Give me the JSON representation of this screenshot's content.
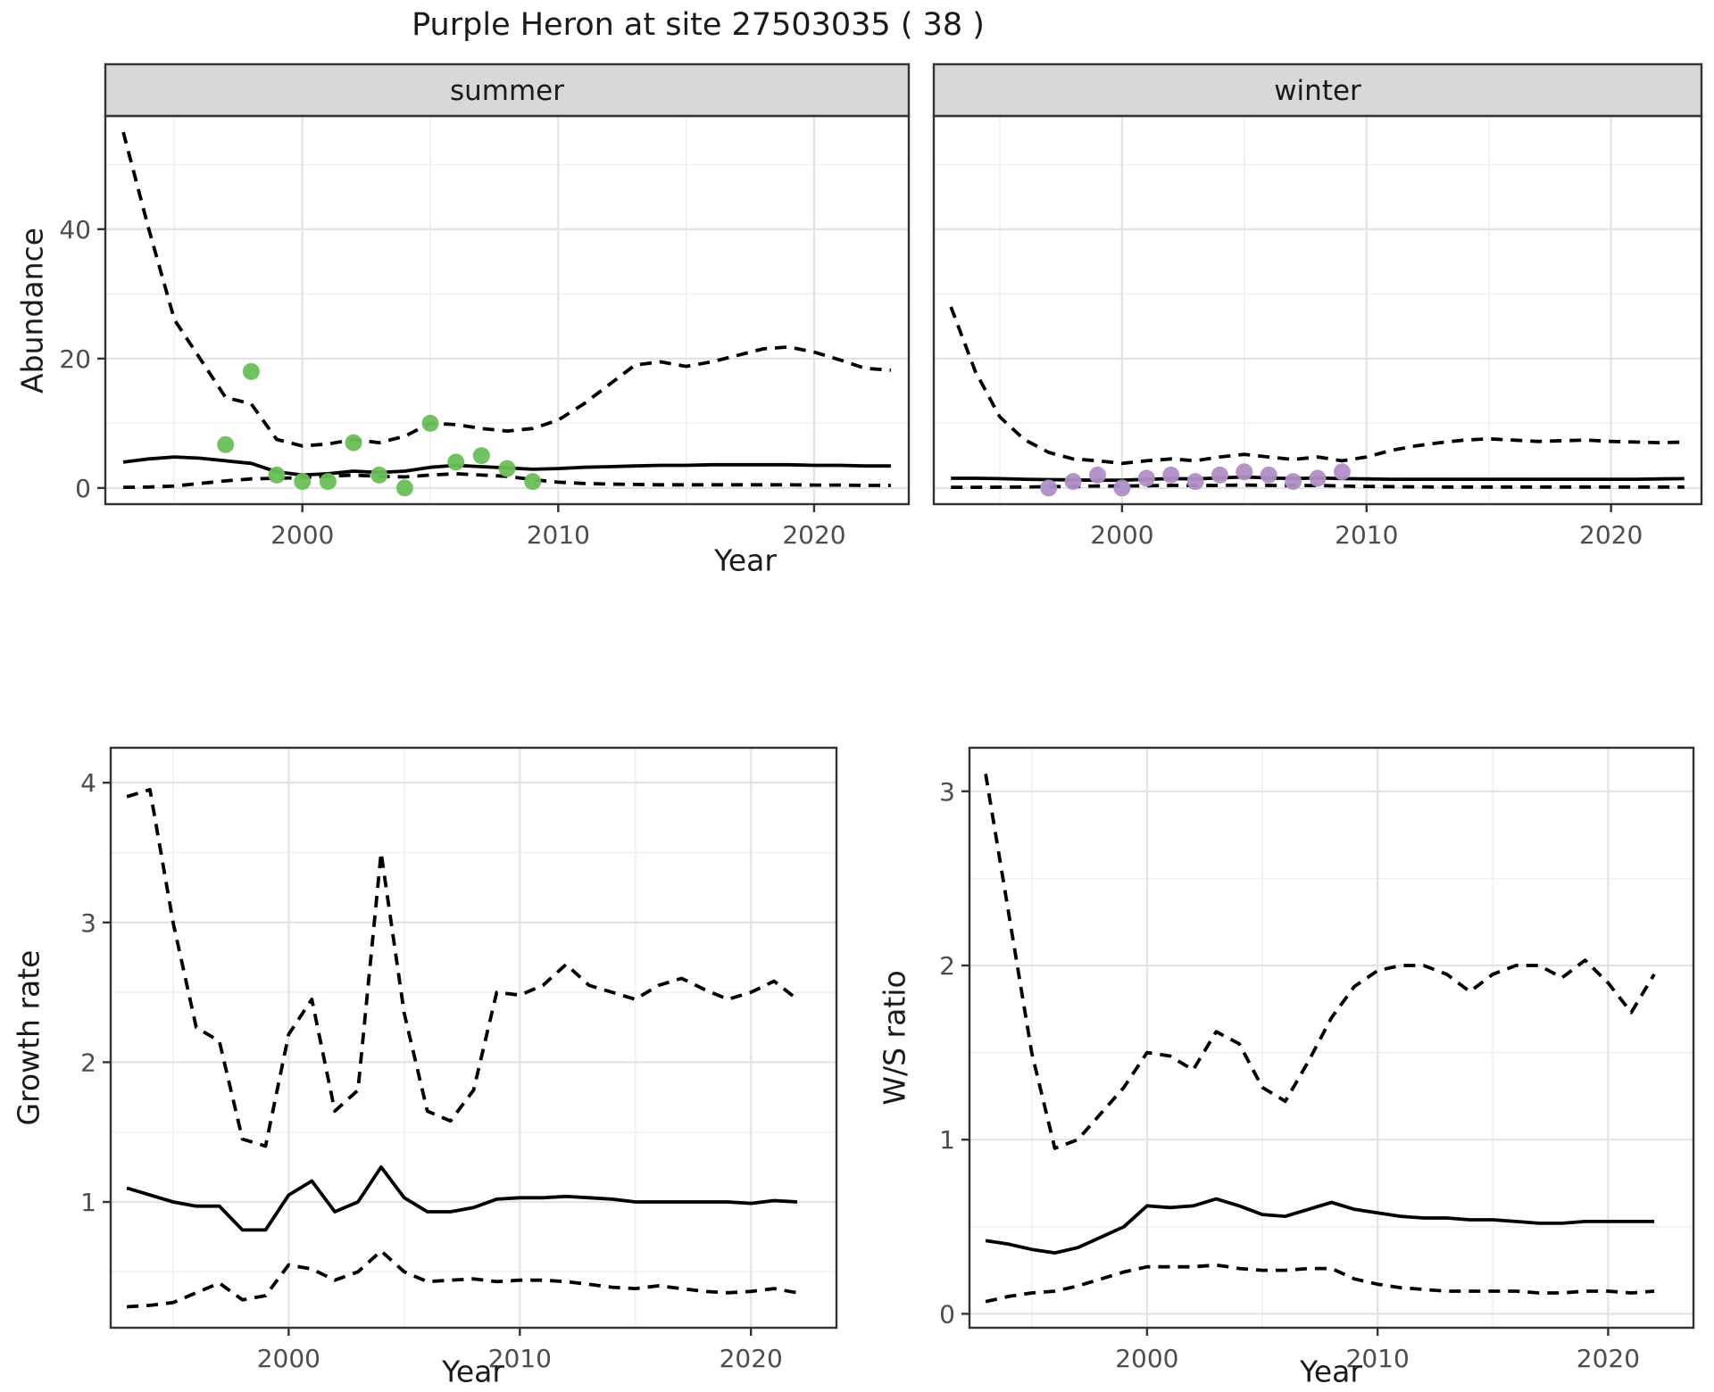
{
  "title": "Purple Heron at site 27503035 ( 38 )",
  "axis_labels": {
    "y_top": "Abundance",
    "y_growth": "Growth rate",
    "y_ws": "W/S ratio",
    "x": "Year"
  },
  "colors": {
    "summer_point": "#6abf59",
    "winter_point": "#b18fc6",
    "line": "#000000",
    "strip_bg": "#d8d8d8",
    "panel_border": "#333333",
    "grid_major": "#e3e3e3",
    "grid_minor": "#f0f0f0",
    "tick_text": "#4d4d4d",
    "text": "#1a1a1a"
  },
  "chart_data": [
    {
      "type": "line",
      "facet_label": "summer",
      "xlabel": "Year",
      "ylabel": "Abundance",
      "xlim": [
        1992.3,
        2023.7
      ],
      "ylim": [
        -2.5,
        57.5
      ],
      "xticks": [
        2000,
        2010,
        2020
      ],
      "xticks_minor": [
        1995,
        2005,
        2015
      ],
      "yticks": [
        0,
        20,
        40
      ],
      "yticks_minor": [
        10,
        30,
        50
      ],
      "grid": true,
      "legend": "none",
      "x": [
        1993,
        1994,
        1995,
        1996,
        1997,
        1998,
        1999,
        2000,
        2001,
        2002,
        2003,
        2004,
        2005,
        2006,
        2007,
        2008,
        2009,
        2010,
        2011,
        2012,
        2013,
        2014,
        2015,
        2016,
        2017,
        2018,
        2019,
        2020,
        2021,
        2022,
        2023
      ],
      "series": [
        {
          "name": "upper_ci",
          "style": "dashed",
          "values": [
            55,
            40,
            26,
            20,
            14,
            13,
            7.5,
            6.5,
            6.8,
            7.5,
            7,
            8,
            10,
            9.8,
            9.2,
            8.8,
            9.2,
            10.5,
            13,
            16,
            19,
            19.5,
            18.8,
            19.5,
            20.5,
            21.5,
            21.8,
            21,
            19.8,
            18.5,
            18.2
          ]
        },
        {
          "name": "median",
          "style": "solid",
          "values": [
            4,
            4.5,
            4.8,
            4.6,
            4.2,
            3.8,
            2.5,
            2,
            2.2,
            2.6,
            2.4,
            2.6,
            3.2,
            3.5,
            3.3,
            3.1,
            2.9,
            3,
            3.2,
            3.3,
            3.4,
            3.5,
            3.5,
            3.6,
            3.6,
            3.6,
            3.6,
            3.5,
            3.5,
            3.4,
            3.4
          ]
        },
        {
          "name": "lower_ci",
          "style": "dashed",
          "values": [
            0.1,
            0.15,
            0.3,
            0.7,
            1.1,
            1.4,
            1.5,
            1.6,
            1.8,
            2,
            1.8,
            1.7,
            2,
            2.2,
            2,
            1.8,
            1.3,
            0.9,
            0.7,
            0.6,
            0.55,
            0.5,
            0.5,
            0.5,
            0.5,
            0.5,
            0.5,
            0.45,
            0.45,
            0.4,
            0.4
          ]
        }
      ],
      "points": {
        "name": "observed-summer-counts",
        "color": "#6abf59",
        "data": [
          [
            1997,
            6.7
          ],
          [
            1998,
            18
          ],
          [
            1999,
            2
          ],
          [
            2000,
            1
          ],
          [
            2001,
            1
          ],
          [
            2002,
            7
          ],
          [
            2003,
            2
          ],
          [
            2004,
            0
          ],
          [
            2005,
            10
          ],
          [
            2006,
            4
          ],
          [
            2007,
            5
          ],
          [
            2008,
            3
          ],
          [
            2009,
            1
          ]
        ]
      }
    },
    {
      "type": "line",
      "facet_label": "winter",
      "xlabel": "Year",
      "ylabel": "Abundance",
      "xlim": [
        1992.3,
        2023.7
      ],
      "ylim": [
        -2.5,
        57.5
      ],
      "xticks": [
        2000,
        2010,
        2020
      ],
      "xticks_minor": [
        1995,
        2005,
        2015
      ],
      "yticks": [
        0,
        20,
        40
      ],
      "yticks_minor": [
        10,
        30,
        50
      ],
      "grid": true,
      "legend": "none",
      "x": [
        1993,
        1994,
        1995,
        1996,
        1997,
        1998,
        1999,
        2000,
        2001,
        2002,
        2003,
        2004,
        2005,
        2006,
        2007,
        2008,
        2009,
        2010,
        2011,
        2012,
        2013,
        2014,
        2015,
        2016,
        2017,
        2018,
        2019,
        2020,
        2021,
        2022,
        2023
      ],
      "series": [
        {
          "name": "upper_ci",
          "style": "dashed",
          "values": [
            28,
            18,
            11,
            7.5,
            5.5,
            4.5,
            4.2,
            3.8,
            4.2,
            4.5,
            4.2,
            4.8,
            5.2,
            4.8,
            4.4,
            4.8,
            4.2,
            4.8,
            5.8,
            6.5,
            7,
            7.4,
            7.6,
            7.4,
            7.2,
            7.3,
            7.4,
            7.2,
            7.1,
            7,
            7.1
          ]
        },
        {
          "name": "median",
          "style": "solid",
          "values": [
            1.5,
            1.5,
            1.45,
            1.35,
            1.3,
            1.25,
            1.2,
            1.2,
            1.35,
            1.45,
            1.4,
            1.55,
            1.7,
            1.55,
            1.45,
            1.55,
            1.45,
            1.4,
            1.35,
            1.35,
            1.35,
            1.35,
            1.35,
            1.35,
            1.35,
            1.35,
            1.35,
            1.35,
            1.35,
            1.4,
            1.45
          ]
        },
        {
          "name": "lower_ci",
          "style": "dashed",
          "values": [
            0.1,
            0.1,
            0.12,
            0.15,
            0.2,
            0.25,
            0.3,
            0.3,
            0.35,
            0.4,
            0.38,
            0.4,
            0.45,
            0.4,
            0.35,
            0.4,
            0.3,
            0.25,
            0.2,
            0.18,
            0.15,
            0.15,
            0.15,
            0.15,
            0.15,
            0.15,
            0.15,
            0.15,
            0.15,
            0.15,
            0.15
          ]
        }
      ],
      "points": {
        "name": "observed-winter-counts",
        "color": "#b18fc6",
        "data": [
          [
            1997,
            0
          ],
          [
            1998,
            1
          ],
          [
            1999,
            2
          ],
          [
            2000,
            0
          ],
          [
            2001,
            1.5
          ],
          [
            2002,
            2
          ],
          [
            2003,
            1
          ],
          [
            2004,
            2
          ],
          [
            2005,
            2.5
          ],
          [
            2006,
            2
          ],
          [
            2007,
            1
          ],
          [
            2008,
            1.5
          ],
          [
            2009,
            2.5
          ]
        ]
      }
    },
    {
      "type": "line",
      "facet_label": "",
      "xlabel": "Year",
      "ylabel": "Growth rate",
      "xlim": [
        1992.3,
        2023.7
      ],
      "ylim": [
        0.1,
        4.25
      ],
      "xticks": [
        2000,
        2010,
        2020
      ],
      "xticks_minor": [
        1995,
        2005,
        2015
      ],
      "yticks": [
        1,
        2,
        3,
        4
      ],
      "yticks_minor": [
        0.5,
        1.5,
        2.5,
        3.5
      ],
      "grid": true,
      "legend": "none",
      "x": [
        1993,
        1994,
        1995,
        1996,
        1997,
        1998,
        1999,
        2000,
        2001,
        2002,
        2003,
        2004,
        2005,
        2006,
        2007,
        2008,
        2009,
        2010,
        2011,
        2012,
        2013,
        2014,
        2015,
        2016,
        2017,
        2018,
        2019,
        2020,
        2021,
        2022
      ],
      "series": [
        {
          "name": "upper_ci",
          "style": "dashed",
          "values": [
            3.9,
            3.95,
            3,
            2.25,
            2.15,
            1.45,
            1.4,
            2.2,
            2.45,
            1.65,
            1.8,
            3.5,
            2.35,
            1.65,
            1.58,
            1.8,
            2.5,
            2.48,
            2.55,
            2.7,
            2.55,
            2.5,
            2.45,
            2.55,
            2.6,
            2.52,
            2.45,
            2.5,
            2.58,
            2.45
          ]
        },
        {
          "name": "median",
          "style": "solid",
          "values": [
            1.1,
            1.05,
            1,
            0.97,
            0.97,
            0.8,
            0.8,
            1.05,
            1.15,
            0.93,
            1,
            1.25,
            1.03,
            0.93,
            0.93,
            0.96,
            1.02,
            1.03,
            1.03,
            1.04,
            1.03,
            1.02,
            1,
            1,
            1,
            1,
            1,
            0.99,
            1.01,
            1
          ]
        },
        {
          "name": "lower_ci",
          "style": "dashed",
          "values": [
            0.25,
            0.26,
            0.28,
            0.35,
            0.42,
            0.3,
            0.33,
            0.55,
            0.52,
            0.44,
            0.5,
            0.65,
            0.5,
            0.43,
            0.44,
            0.45,
            0.43,
            0.44,
            0.44,
            0.43,
            0.41,
            0.39,
            0.38,
            0.4,
            0.38,
            0.36,
            0.35,
            0.36,
            0.38,
            0.35
          ]
        }
      ],
      "points": null
    },
    {
      "type": "line",
      "facet_label": "",
      "xlabel": "Year",
      "ylabel": "W/S ratio",
      "xlim": [
        1992.3,
        2023.7
      ],
      "ylim": [
        -0.08,
        3.25
      ],
      "xticks": [
        2000,
        2010,
        2020
      ],
      "xticks_minor": [
        1995,
        2005,
        2015
      ],
      "yticks": [
        0,
        1,
        2,
        3
      ],
      "yticks_minor": [
        0.5,
        1.5,
        2.5
      ],
      "grid": true,
      "legend": "none",
      "x": [
        1993,
        1994,
        1995,
        1996,
        1997,
        1998,
        1999,
        2000,
        2001,
        2002,
        2003,
        2004,
        2005,
        2006,
        2007,
        2008,
        2009,
        2010,
        2011,
        2012,
        2013,
        2014,
        2015,
        2016,
        2017,
        2018,
        2019,
        2020,
        2021,
        2022
      ],
      "series": [
        {
          "name": "upper_ci",
          "style": "dashed",
          "values": [
            3.1,
            2.3,
            1.5,
            0.95,
            1,
            1.15,
            1.3,
            1.5,
            1.48,
            1.4,
            1.62,
            1.55,
            1.3,
            1.22,
            1.45,
            1.7,
            1.88,
            1.97,
            2,
            2,
            1.95,
            1.85,
            1.95,
            2,
            2,
            1.93,
            2.03,
            1.9,
            1.73,
            1.95
          ]
        },
        {
          "name": "median",
          "style": "solid",
          "values": [
            0.42,
            0.4,
            0.37,
            0.35,
            0.38,
            0.44,
            0.5,
            0.62,
            0.61,
            0.62,
            0.66,
            0.62,
            0.57,
            0.56,
            0.6,
            0.64,
            0.6,
            0.58,
            0.56,
            0.55,
            0.55,
            0.54,
            0.54,
            0.53,
            0.52,
            0.52,
            0.53,
            0.53,
            0.53,
            0.53
          ]
        },
        {
          "name": "lower_ci",
          "style": "dashed",
          "values": [
            0.07,
            0.1,
            0.12,
            0.13,
            0.16,
            0.2,
            0.24,
            0.27,
            0.27,
            0.27,
            0.28,
            0.26,
            0.25,
            0.25,
            0.26,
            0.26,
            0.2,
            0.17,
            0.15,
            0.14,
            0.13,
            0.13,
            0.13,
            0.13,
            0.12,
            0.12,
            0.13,
            0.13,
            0.12,
            0.13
          ]
        }
      ],
      "points": null
    }
  ]
}
